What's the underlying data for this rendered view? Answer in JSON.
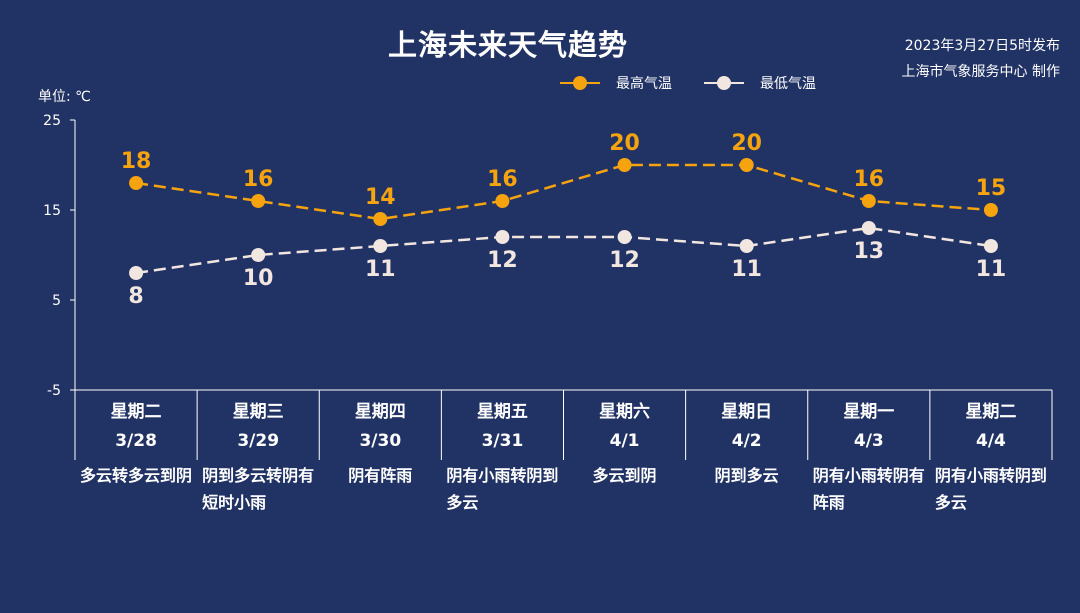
{
  "title": "上海未来天气趋势",
  "publish_time": "2023年3月27日5时发布",
  "producer": "上海市气象服务中心 制作",
  "unit_label": "单位: ℃",
  "legend": [
    {
      "name": "最高气温",
      "color": "#f5a30f"
    },
    {
      "name": "最低气温",
      "color": "#f2e6e0"
    }
  ],
  "days": [
    {
      "weekday": "星期二",
      "date": "3/28",
      "desc": "多云转多云到阴"
    },
    {
      "weekday": "星期三",
      "date": "3/29",
      "desc": "阴到多云转阴有短时小雨"
    },
    {
      "weekday": "星期四",
      "date": "3/30",
      "desc": "阴有阵雨"
    },
    {
      "weekday": "星期五",
      "date": "3/31",
      "desc": "阴有小雨转阴到多云"
    },
    {
      "weekday": "星期六",
      "date": "4/1",
      "desc": "多云到阴"
    },
    {
      "weekday": "星期日",
      "date": "4/2",
      "desc": "阴到多云"
    },
    {
      "weekday": "星期一",
      "date": "4/3",
      "desc": "阴有小雨转阴有阵雨"
    },
    {
      "weekday": "星期二",
      "date": "4/4",
      "desc": "阴有小雨转阴到多云"
    }
  ],
  "chart_data": {
    "type": "line",
    "title": "上海未来天气趋势",
    "ylabel": "单位: ℃",
    "ylim": [
      -5,
      25
    ],
    "yticks": [
      25,
      15,
      5,
      -5
    ],
    "categories": [
      "星期二 3/28",
      "星期三 3/29",
      "星期四 3/30",
      "星期五 3/31",
      "星期六 4/1",
      "星期日 4/2",
      "星期一 4/3",
      "星期二 4/4"
    ],
    "series": [
      {
        "name": "最高气温",
        "values": [
          18,
          16,
          14,
          16,
          20,
          20,
          16,
          15
        ],
        "color": "#f5a30f",
        "label_position": "above"
      },
      {
        "name": "最低气温",
        "values": [
          8,
          10,
          11,
          12,
          12,
          11,
          13,
          11
        ],
        "color": "#f2e6e0",
        "label_position": "mixed"
      }
    ],
    "grid": false,
    "legend_position": "top-right",
    "line_style": "dashed"
  }
}
